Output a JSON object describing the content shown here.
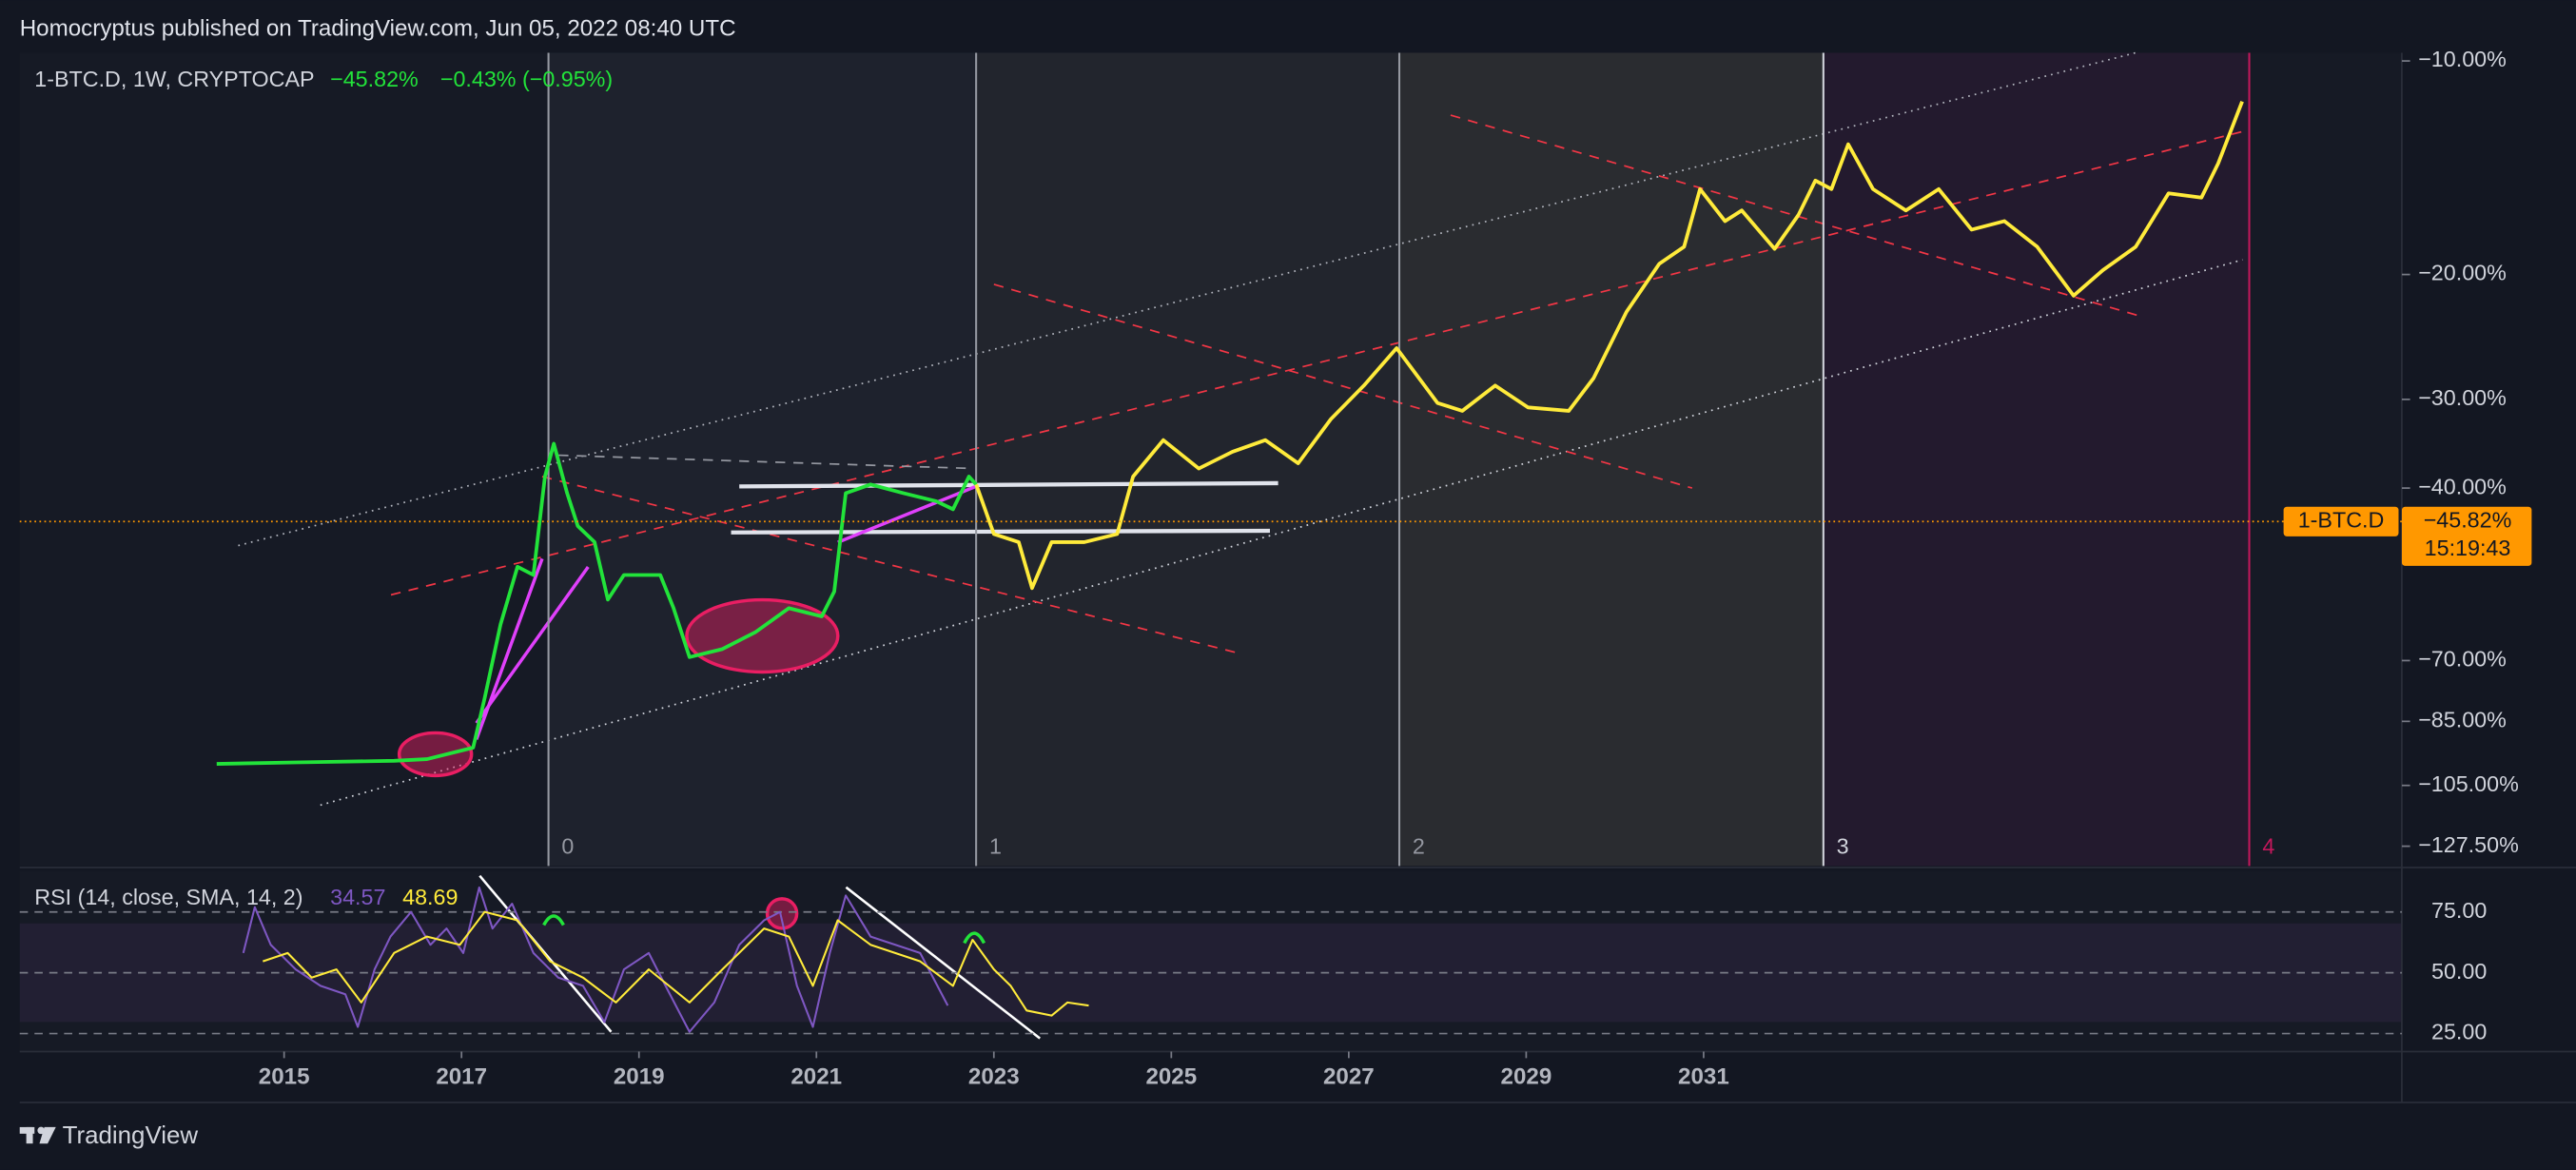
{
  "header": {
    "publisher": "Homocryptus published on TradingView.com, Jun 05, 2022 08:40 UTC"
  },
  "footer": {
    "brand": "TradingView"
  },
  "chart_data": [
    {
      "type": "line",
      "symbol": "1-BTC.D, 1W, CRYPTOCAP",
      "last": {
        "value": -45.82,
        "label": "−45.82%"
      },
      "change": "−0.43% (−0.95%)",
      "price_tag": {
        "symbol": "1-BTC.D",
        "countdown": "15:19:43"
      },
      "xlim": [
        2012.02,
        2038.87
      ],
      "xticks": [
        2015,
        2017,
        2019,
        2021,
        2023,
        2025,
        2027,
        2029,
        2031
      ],
      "ylim": [
        -134.8,
        -9.6
      ],
      "yticks": [
        {
          "value": -10,
          "label": "−10.00%"
        },
        {
          "value": -20,
          "label": "−20.00%"
        },
        {
          "value": -30,
          "label": "−30.00%"
        },
        {
          "value": -40,
          "label": "−40.00%"
        },
        {
          "value": -70,
          "label": "−70.00%"
        },
        {
          "value": -85,
          "label": "−85.00%"
        },
        {
          "value": -105,
          "label": "−105.00%"
        },
        {
          "value": -127.5,
          "label": "−127.50%"
        }
      ],
      "cycles": [
        {
          "label": "0",
          "x": 2017.98,
          "color": "#9598a1"
        },
        {
          "label": "1",
          "x": 2022.8,
          "color": "#9598a1"
        },
        {
          "label": "2",
          "x": 2027.57,
          "color": "#9598a1"
        },
        {
          "label": "3",
          "x": 2032.35,
          "color": "#d1d4dc"
        },
        {
          "label": "4",
          "x": 2037.15,
          "color": "#c2185b"
        }
      ],
      "series": [
        {
          "color": "#22e33a",
          "x": [
            2014.24,
            2015.13,
            2016.24,
            2016.61,
            2017.13,
            2017.26,
            2017.44,
            2017.63,
            2017.81,
            2017.94,
            2018.04,
            2018.19,
            2018.31,
            2018.5,
            2018.65,
            2018.83,
            2019.11,
            2019.24,
            2019.39,
            2019.57,
            2019.94,
            2020.31,
            2020.69,
            2021.06,
            2021.2,
            2021.33,
            2021.61,
            2021.98,
            2022.35,
            2022.54,
            2022.72,
            2022.8
          ],
          "values": [
            -98.3,
            -97.8,
            -97.3,
            -96.8,
            -93.2,
            -79.3,
            -63.7,
            -53.7,
            -55.1,
            -38.7,
            -35,
            -40.9,
            -46.6,
            -49.4,
            -59.4,
            -55.1,
            -55.1,
            -55.1,
            -60.9,
            -69.4,
            -68,
            -65.1,
            -60.9,
            -62.3,
            -58,
            -40.9,
            -39.6,
            -40.9,
            -42.3,
            -43.7,
            -38.7,
            -39.6
          ]
        },
        {
          "color": "#ffeb3b",
          "x": [
            2022.8,
            2023,
            2023.28,
            2023.43,
            2023.65,
            2024.02,
            2024.39,
            2024.57,
            2024.91,
            2025.31,
            2025.69,
            2026.06,
            2026.43,
            2026.8,
            2027.17,
            2027.54,
            2028,
            2028.28,
            2028.65,
            2029.02,
            2029.48,
            2029.76,
            2030.13,
            2030.5,
            2030.78,
            2030.96,
            2031.24,
            2031.43,
            2031.8,
            2032.07,
            2032.26,
            2032.44,
            2032.63,
            2032.91,
            2033.28,
            2033.65,
            2034.02,
            2034.39,
            2034.76,
            2035.17,
            2035.5,
            2035.87,
            2036.24,
            2036.61,
            2036.8,
            2037.07
          ],
          "values": [
            -39.6,
            -48,
            -49.4,
            -57.4,
            -49.4,
            -49.4,
            -48,
            -38.7,
            -34.6,
            -37.8,
            -35.9,
            -34.6,
            -37.2,
            -32.2,
            -28.9,
            -25.9,
            -30.4,
            -31.3,
            -28.9,
            -30.9,
            -31.3,
            -28.3,
            -23,
            -19.5,
            -18.7,
            -16,
            -17.5,
            -17,
            -18.8,
            -17.2,
            -15.6,
            -16,
            -13.9,
            -16,
            -17,
            -16,
            -17.9,
            -17.5,
            -18.7,
            -21.7,
            -19.8,
            -18.7,
            -16.2,
            -16.4,
            -14.8,
            -11.9
          ]
        }
      ]
    },
    {
      "type": "line",
      "title": "RSI (14, close, SMA, 14, 2)",
      "ylim": [
        17.6,
        91.9
      ],
      "yticks": [
        {
          "value": 75,
          "label": "75.00"
        },
        {
          "value": 50,
          "label": "50.00"
        },
        {
          "value": 25,
          "label": "25.00"
        }
      ],
      "series": [
        {
          "color": "#7e57c2",
          "last": 34.57,
          "x": [
            2014.54,
            2014.67,
            2014.85,
            2015.13,
            2015.41,
            2015.69,
            2015.83,
            2016.02,
            2016.2,
            2016.43,
            2016.65,
            2016.83,
            2017.02,
            2017.2,
            2017.35,
            2017.57,
            2017.81,
            2018.09,
            2018.37,
            2018.61,
            2018.83,
            2019.11,
            2019.3,
            2019.57,
            2019.85,
            2020.13,
            2020.41,
            2020.59,
            2020.78,
            2020.96,
            2021.15,
            2021.33,
            2021.61,
            2021.89,
            2022.17,
            2022.48
          ],
          "values": [
            58.1,
            77,
            61.5,
            51.4,
            44.6,
            41.2,
            27.7,
            51.4,
            64.9,
            75,
            61.5,
            68.2,
            58.1,
            85.1,
            68.2,
            78.4,
            58.1,
            48,
            44.6,
            29.7,
            51.4,
            58.1,
            44.6,
            25.7,
            37.8,
            61.5,
            71.6,
            75,
            44.6,
            27.7,
            58.1,
            81.8,
            64.9,
            61.5,
            58.1,
            36.5
          ]
        },
        {
          "color": "#ffeb3b",
          "last": 48.69,
          "x": [
            2014.76,
            2015.04,
            2015.31,
            2015.59,
            2015.87,
            2016.24,
            2016.61,
            2016.98,
            2017.26,
            2017.63,
            2018,
            2018.37,
            2018.74,
            2019.11,
            2019.57,
            2019.94,
            2020.41,
            2020.69,
            2020.96,
            2021.24,
            2021.61,
            2022.17,
            2022.54,
            2022.76,
            2023,
            2023.19,
            2023.37,
            2023.65,
            2023.83,
            2024.07
          ],
          "values": [
            54.7,
            58.1,
            48,
            51.4,
            37.8,
            58.1,
            64.9,
            61.5,
            75,
            71.6,
            54.7,
            48,
            37.8,
            51.4,
            37.8,
            51.4,
            68.2,
            64.9,
            44.6,
            71.6,
            61.5,
            54.7,
            44.6,
            63.5,
            51.4,
            44.6,
            34.5,
            32.4,
            37.8,
            36.5
          ]
        }
      ]
    }
  ]
}
